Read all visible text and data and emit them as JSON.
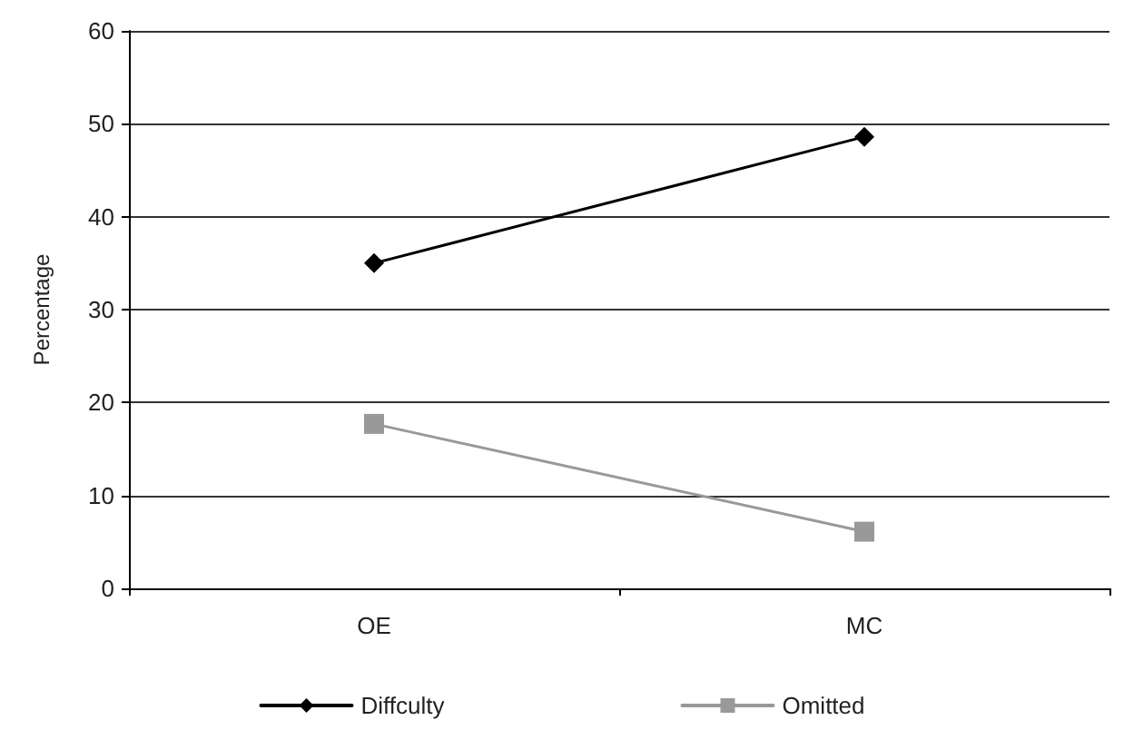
{
  "chart_data": {
    "type": "line",
    "ylabel": "Percentage",
    "categories": [
      "OE",
      "MC"
    ],
    "series": [
      {
        "name": "Diffculty",
        "color": "#000000",
        "marker": "diamond",
        "values": [
          35.0,
          48.6
        ]
      },
      {
        "name": "Omitted",
        "color": "#999999",
        "marker": "square",
        "values": [
          17.7,
          6.1
        ]
      }
    ],
    "ylim": [
      0,
      60
    ],
    "yticks": [
      0,
      10,
      20,
      30,
      40,
      50,
      60
    ],
    "grid": "y",
    "legend": "bottom",
    "line_style": "solid"
  }
}
